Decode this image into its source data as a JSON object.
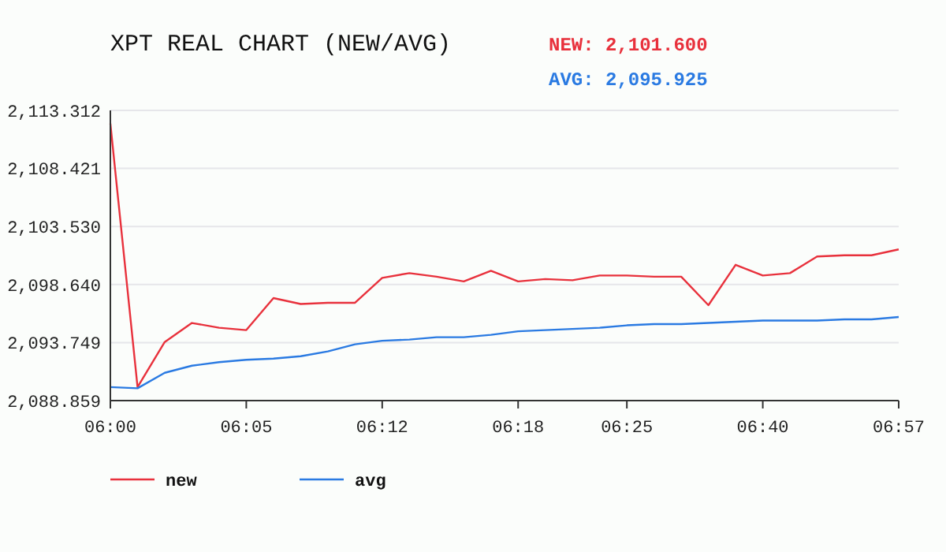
{
  "chart_data": {
    "type": "line",
    "title": "XPT REAL CHART (NEW/AVG)",
    "annotations": [
      "NEW: 2,101.600",
      "AVG: 2,095.925"
    ],
    "categories": [
      "06:00",
      null,
      null,
      null,
      null,
      "06:05",
      null,
      null,
      null,
      null,
      "06:12",
      null,
      null,
      null,
      null,
      "06:18",
      null,
      null,
      null,
      "06:25",
      null,
      null,
      null,
      null,
      "06:40",
      null,
      null,
      null,
      null,
      "06:57"
    ],
    "series": [
      {
        "name": "new",
        "color": "#e8313c",
        "values": [
          2112.2,
          2090.0,
          2093.8,
          2095.4,
          2095.0,
          2094.8,
          2097.5,
          2097.0,
          2097.1,
          2097.1,
          2099.2,
          2099.6,
          2099.3,
          2098.9,
          2099.8,
          2098.9,
          2099.1,
          2099.0,
          2099.4,
          2099.4,
          2099.3,
          2099.3,
          2096.9,
          2100.3,
          2099.4,
          2099.6,
          2101.0,
          2101.1,
          2101.1,
          2101.6
        ]
      },
      {
        "name": "avg",
        "color": "#2a7ae2",
        "values": [
          2090.0,
          2089.9,
          2091.2,
          2091.8,
          2092.1,
          2092.3,
          2092.4,
          2092.6,
          2093.0,
          2093.6,
          2093.9,
          2094.0,
          2094.2,
          2094.2,
          2094.4,
          2094.7,
          2094.8,
          2094.9,
          2095.0,
          2095.2,
          2095.3,
          2095.3,
          2095.4,
          2095.5,
          2095.6,
          2095.6,
          2095.6,
          2095.7,
          2095.7,
          2095.9
        ]
      }
    ],
    "ylim": [
      2088.859,
      2113.312
    ],
    "yticks": [
      {
        "value": 2088.859,
        "label": "2,088.859"
      },
      {
        "value": 2093.749,
        "label": "2,093.749"
      },
      {
        "value": 2098.64,
        "label": "2,098.640"
      },
      {
        "value": 2103.53,
        "label": "2,103.530"
      },
      {
        "value": 2108.421,
        "label": "2,108.421"
      },
      {
        "value": 2113.312,
        "label": "2,113.312"
      }
    ],
    "grid": "y",
    "legend": "bottom left",
    "marker": "none",
    "line_style": "solid"
  }
}
